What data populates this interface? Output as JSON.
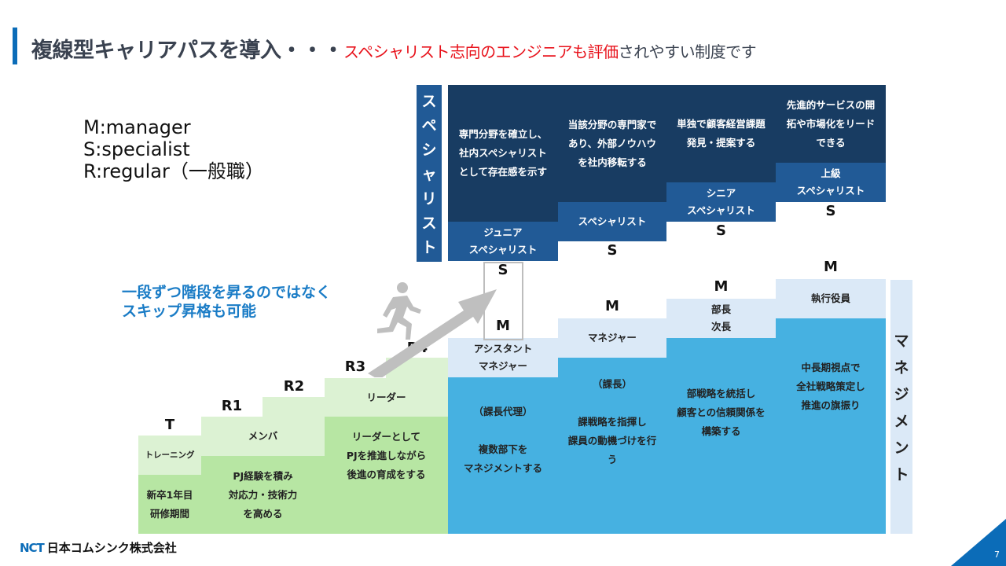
{
  "title": {
    "main": "複線型キャリアパスを導入・・・",
    "highlight": "スペシャリスト志向のエンジニアも評価",
    "rest": "されやすい制度です"
  },
  "legend": [
    "M:manager",
    "S:specialist",
    "R:regular（一般職）"
  ],
  "note": [
    "一段ずつ階段を昇るのではなく",
    "スキップ昇格も可能"
  ],
  "specialist": {
    "label": "スペシャリスト",
    "levels": [
      {
        "code": "S1",
        "title": [
          "ジュニア",
          "スペシャリスト"
        ],
        "desc": [
          "専門分野を確立し、",
          "社内スペシャリスト",
          "として存在感を示す"
        ]
      },
      {
        "code": "S2",
        "title": [
          "スペシャリスト"
        ],
        "desc": [
          "当該分野の専門家で",
          "あり、外部ノウハウ",
          "を社内移転する"
        ]
      },
      {
        "code": "S3",
        "title": [
          "シニア",
          "スペシャリスト"
        ],
        "desc": [
          "単独で顧客経営課題",
          "発見・提案する"
        ]
      },
      {
        "code": "S4",
        "title": [
          "上級",
          "スペシャリスト"
        ],
        "desc": [
          "先進的サービスの開",
          "拓や市場化をリード",
          "できる"
        ]
      }
    ]
  },
  "management": {
    "label": "マネジメント",
    "levels": [
      {
        "code": "M1",
        "title": [
          "アシスタント",
          "マネジャー"
        ],
        "desc": [
          "（課長代理）",
          "",
          "複数部下を",
          "マネジメントする"
        ]
      },
      {
        "code": "M2",
        "title": [
          "マネジャー"
        ],
        "desc": [
          "（課長）",
          "",
          "課戦略を指揮し",
          "課員の動機づけを行",
          "う"
        ]
      },
      {
        "code": "M3",
        "title": [
          "部長",
          "次長"
        ],
        "desc": [
          "部戦略を統括し",
          "顧客との信頼関係を",
          "構築する"
        ]
      },
      {
        "code": "M4",
        "title": [
          "執行役員"
        ],
        "desc": [
          "中長期視点で",
          "全社戦略策定し",
          "推進の旗振り"
        ]
      }
    ]
  },
  "regular": {
    "levels": [
      {
        "code": "T",
        "title": "トレーニング",
        "desc": [
          "新卒1年目",
          "研修期間"
        ]
      },
      {
        "code": "R1"
      },
      {
        "code": "R2"
      },
      {
        "code": "R3"
      },
      {
        "code": "R4"
      }
    ],
    "groups": [
      {
        "title": "メンバ",
        "desc": [
          "PJ経験を積み",
          "対応力・技術力",
          "を高める"
        ]
      },
      {
        "title": "リーダー",
        "desc": [
          "リーダーとして",
          "PJを推進しながら",
          "後進の育成をする"
        ]
      }
    ]
  },
  "footer": {
    "company_mark": "NCT",
    "company": "日本コムシンク株式会社",
    "page": "7"
  },
  "colors": {
    "accent": "#0b6cb8",
    "red": "#e8121b",
    "navy": "#183c62",
    "mid": "#215a96",
    "lightblue": "#dbe9f7",
    "blue": "#46b1e1",
    "lightgreen": "#dcf2d3",
    "green": "#b7e6a3"
  }
}
